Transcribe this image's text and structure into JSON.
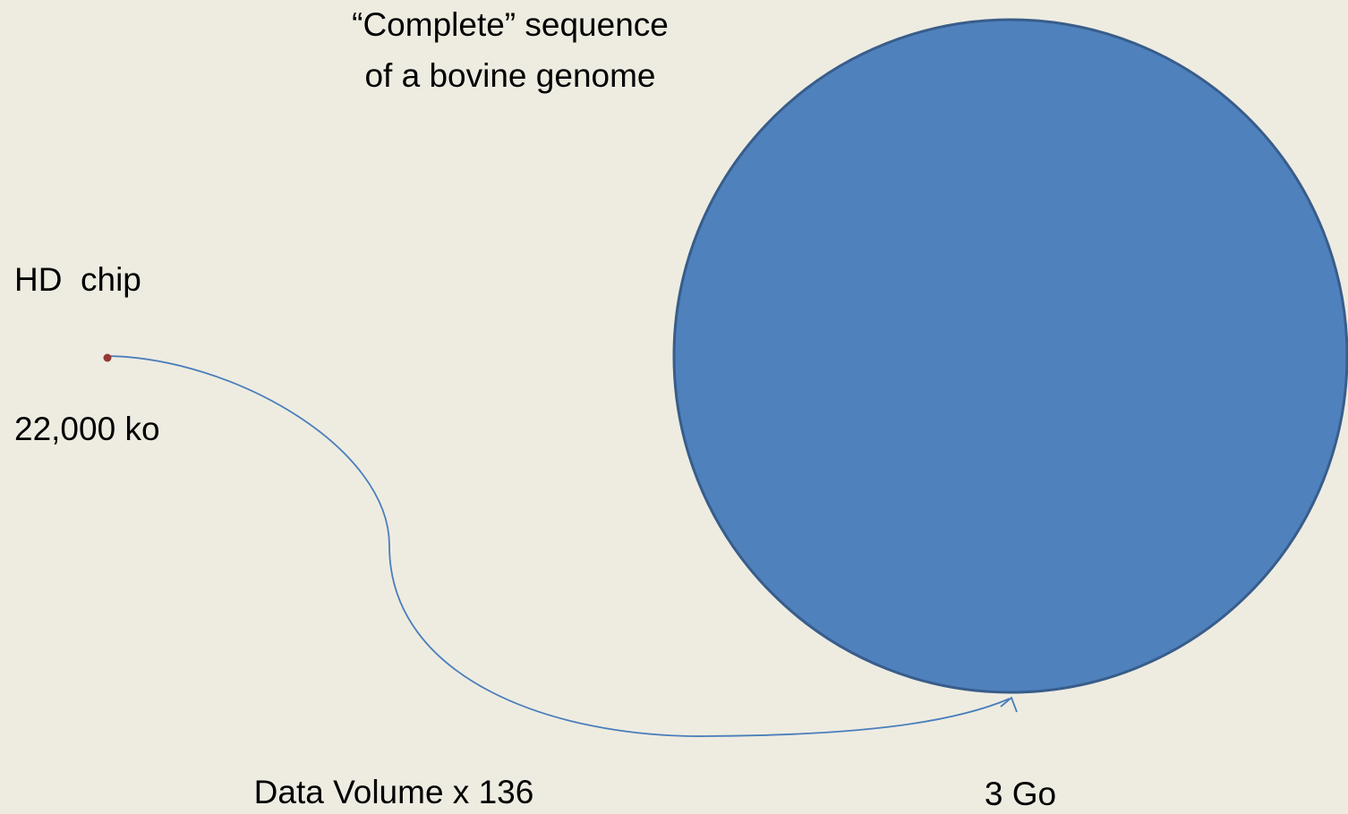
{
  "title": {
    "lines": [
      "“Complete” sequence",
      "of a bovine genome"
    ]
  },
  "small_item": {
    "label": "HD  chip",
    "size": "22,000 ko"
  },
  "large_item": {
    "size": "3 Go"
  },
  "comparison": "Data Volume x 136"
}
